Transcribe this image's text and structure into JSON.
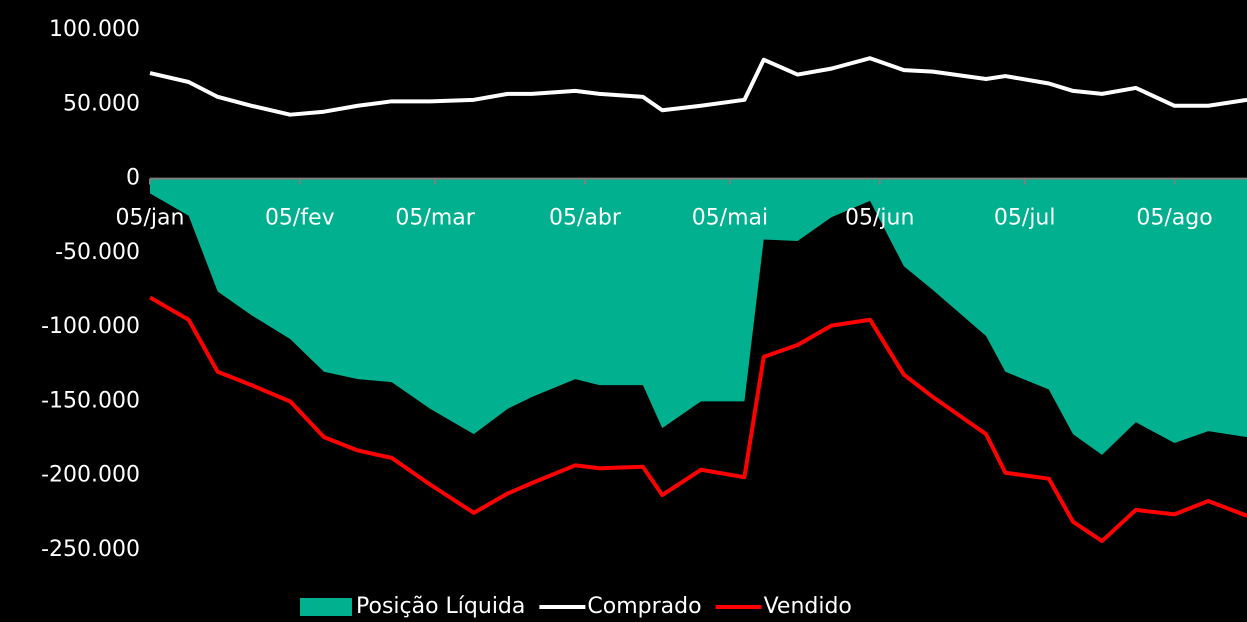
{
  "chart_data": {
    "type": "line",
    "x": [
      0,
      8,
      14,
      21,
      29,
      36,
      43,
      50,
      58,
      67,
      74,
      79,
      88,
      93,
      102,
      106,
      114,
      123,
      127,
      134,
      141,
      149,
      156,
      162,
      173,
      177,
      186,
      191,
      197,
      204,
      212,
      219,
      227
    ],
    "xlim": [
      0,
      227
    ],
    "xticks": [
      {
        "value": 0,
        "label": "05/jan"
      },
      {
        "value": 31,
        "label": "05/fev"
      },
      {
        "value": 59,
        "label": "05/mar"
      },
      {
        "value": 90,
        "label": "05/abr"
      },
      {
        "value": 120,
        "label": "05/mai"
      },
      {
        "value": 151,
        "label": "05/jun"
      },
      {
        "value": 181,
        "label": "05/jul"
      },
      {
        "value": 212,
        "label": "05/ago"
      }
    ],
    "ylim": [
      -250000,
      100000
    ],
    "yticks": [
      {
        "value": 100000,
        "label": "100.000"
      },
      {
        "value": 50000,
        "label": "50.000"
      },
      0,
      {
        "value": -50000,
        "label": "-50.000"
      },
      {
        "value": -100000,
        "label": "-100.000"
      },
      {
        "value": -150000,
        "label": "-150.000"
      },
      {
        "value": -200000,
        "label": "-200.000"
      },
      {
        "value": -250000,
        "label": "-250.000"
      }
    ],
    "series": [
      {
        "name": "Posição Líquida",
        "kind": "area",
        "color": "#00b08e",
        "values": [
          -10000,
          -25000,
          -76000,
          -92000,
          -108000,
          -130000,
          -135000,
          -137000,
          -155000,
          -172000,
          -155000,
          -147000,
          -135000,
          -139000,
          -139000,
          -168000,
          -150000,
          -150000,
          -41000,
          -42000,
          -26000,
          -15000,
          -59000,
          -75000,
          -106000,
          -130000,
          -142000,
          -172000,
          -186000,
          -164000,
          -178000,
          -170000,
          -174000
        ]
      },
      {
        "name": "Comprado",
        "kind": "line",
        "color": "#ffffff",
        "values": [
          71000,
          65000,
          55000,
          49000,
          43000,
          45000,
          49000,
          52000,
          52000,
          53000,
          57000,
          57000,
          59000,
          57000,
          55000,
          46000,
          49000,
          53000,
          80000,
          70000,
          74000,
          81000,
          73000,
          72000,
          67000,
          69000,
          64000,
          59000,
          57000,
          61000,
          49000,
          49000,
          53000
        ]
      },
      {
        "name": "Vendido",
        "kind": "line",
        "color": "#ff0000",
        "values": [
          -80000,
          -95000,
          -130000,
          -139000,
          -150000,
          -174000,
          -183000,
          -188000,
          -206000,
          -225000,
          -212000,
          -205000,
          -193000,
          -195000,
          -194000,
          -213000,
          -196000,
          -201000,
          -120000,
          -112000,
          -99000,
          -95000,
          -132000,
          -147000,
          -172000,
          -198000,
          -202000,
          -231000,
          -244000,
          -223000,
          -226000,
          -217000,
          -227000
        ]
      }
    ]
  }
}
